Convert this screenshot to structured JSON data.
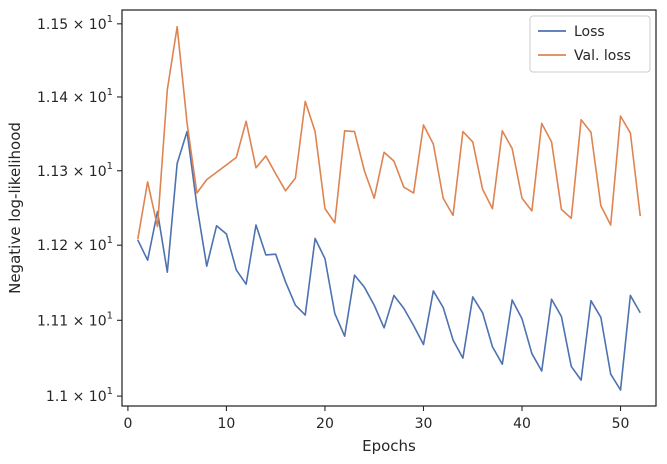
{
  "chart_data": {
    "type": "line",
    "title": "",
    "xlabel": "Epochs",
    "ylabel": "Negative log-likelihood",
    "xlim": [
      -0.6,
      53.6
    ],
    "ylim": [
      10.987,
      11.519
    ],
    "y_scale": "log",
    "grid": false,
    "legend_position": "top-right",
    "x_ticks": [
      0,
      10,
      20,
      30,
      40,
      50
    ],
    "x_tick_labels": [
      "0",
      "10",
      "20",
      "30",
      "40",
      "50"
    ],
    "y_ticks": [
      11.0,
      11.1,
      11.2,
      11.3,
      11.4,
      11.5
    ],
    "y_tick_labels": [
      {
        "mantissa": "1.1",
        "base": "10",
        "exp": "1"
      },
      {
        "mantissa": "1.11",
        "base": "10",
        "exp": "1"
      },
      {
        "mantissa": "1.12",
        "base": "10",
        "exp": "1"
      },
      {
        "mantissa": "1.13",
        "base": "10",
        "exp": "1"
      },
      {
        "mantissa": "1.14",
        "base": "10",
        "exp": "1"
      },
      {
        "mantissa": "1.15",
        "base": "10",
        "exp": "1"
      }
    ],
    "x": [
      1,
      2,
      3,
      4,
      5,
      6,
      7,
      8,
      9,
      10,
      11,
      12,
      13,
      14,
      15,
      16,
      17,
      18,
      19,
      20,
      21,
      22,
      23,
      24,
      25,
      26,
      27,
      28,
      29,
      30,
      31,
      32,
      33,
      34,
      35,
      36,
      37,
      38,
      39,
      40,
      41,
      42,
      43,
      44,
      45,
      46,
      47,
      48,
      49,
      50,
      51,
      52
    ],
    "series": [
      {
        "name": "Loss",
        "color": "#4c72b0",
        "values": [
          11.207,
          11.18,
          11.245,
          11.164,
          11.31,
          11.353,
          11.253,
          11.172,
          11.226,
          11.215,
          11.167,
          11.148,
          11.227,
          11.187,
          11.188,
          11.151,
          11.12,
          11.107,
          11.209,
          11.182,
          11.109,
          11.079,
          11.16,
          11.144,
          11.12,
          11.09,
          11.133,
          11.116,
          11.093,
          11.068,
          11.139,
          11.117,
          11.074,
          11.05,
          11.131,
          11.11,
          11.065,
          11.042,
          11.127,
          11.102,
          11.056,
          11.033,
          11.128,
          11.105,
          11.039,
          11.021,
          11.126,
          11.104,
          11.029,
          11.008,
          11.133,
          11.11
        ]
      },
      {
        "name": "Val. loss",
        "color": "#dd8452",
        "values": [
          11.208,
          11.285,
          11.225,
          11.41,
          11.496,
          11.365,
          11.27,
          11.288,
          11.298,
          11.308,
          11.318,
          11.367,
          11.304,
          11.32,
          11.296,
          11.273,
          11.29,
          11.394,
          11.353,
          11.249,
          11.23,
          11.354,
          11.353,
          11.3,
          11.263,
          11.325,
          11.313,
          11.278,
          11.27,
          11.362,
          11.336,
          11.263,
          11.24,
          11.353,
          11.339,
          11.275,
          11.249,
          11.354,
          11.33,
          11.263,
          11.246,
          11.364,
          11.339,
          11.248,
          11.236,
          11.369,
          11.352,
          11.253,
          11.227,
          11.374,
          11.351,
          11.239
        ]
      }
    ]
  }
}
